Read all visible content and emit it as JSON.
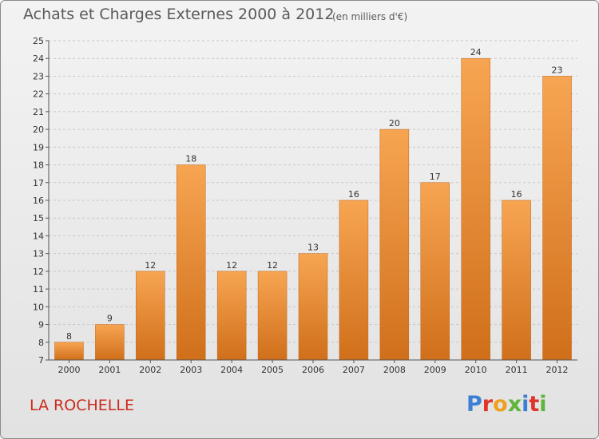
{
  "header": {
    "title": "Achats et Charges Externes 2000 à 2012",
    "unit": "(en milliers d'€)"
  },
  "footer": {
    "city": "LA ROCHELLE",
    "logo_letters": [
      "P",
      "r",
      "o",
      "x",
      "i",
      "t",
      "i"
    ],
    "logo_colors": [
      "#3d7fd4",
      "#e0342a",
      "#f0a020",
      "#5fb43a",
      "#3d7fd4",
      "#e0342a",
      "#5fb43a"
    ]
  },
  "colors": {
    "bar_top": "#f7a552",
    "bar_bottom": "#d06f1a",
    "grid": "#c8c8c8",
    "axis": "#555555"
  },
  "chart_data": {
    "type": "bar",
    "title": "Achats et Charges Externes 2000 à 2012",
    "categories": [
      "2000",
      "2001",
      "2002",
      "2003",
      "2004",
      "2005",
      "2006",
      "2007",
      "2008",
      "2009",
      "2010",
      "2011",
      "2012"
    ],
    "values": [
      8,
      9,
      12,
      18,
      12,
      12,
      13,
      16,
      20,
      17,
      24,
      16,
      23
    ],
    "ylim": [
      7,
      25
    ],
    "yticks": [
      7,
      8,
      9,
      10,
      11,
      12,
      13,
      14,
      15,
      16,
      17,
      18,
      19,
      20,
      21,
      22,
      23,
      24,
      25
    ],
    "grid": true,
    "data_labels": true
  }
}
